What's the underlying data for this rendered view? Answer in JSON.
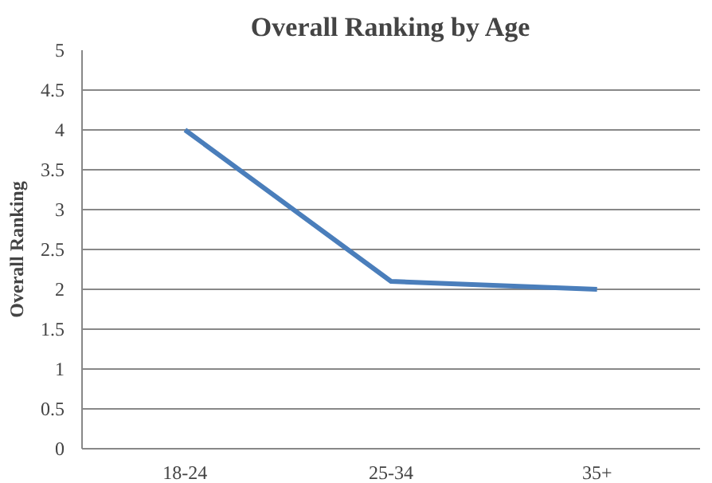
{
  "chart_data": {
    "type": "line",
    "title": "Overall Ranking by Age",
    "ylabel": "Overall Ranking",
    "categories": [
      "18-24",
      "25-34",
      "35+"
    ],
    "series": [
      {
        "color": "#4a7ebb",
        "values": [
          4,
          2.1,
          2.0
        ]
      }
    ],
    "ylim": [
      0,
      5
    ],
    "yticks": [
      0,
      0.5,
      1,
      1.5,
      2,
      2.5,
      3,
      3.5,
      4,
      4.5,
      5
    ],
    "grid": "y",
    "marker": "none",
    "line_style": "solid"
  }
}
